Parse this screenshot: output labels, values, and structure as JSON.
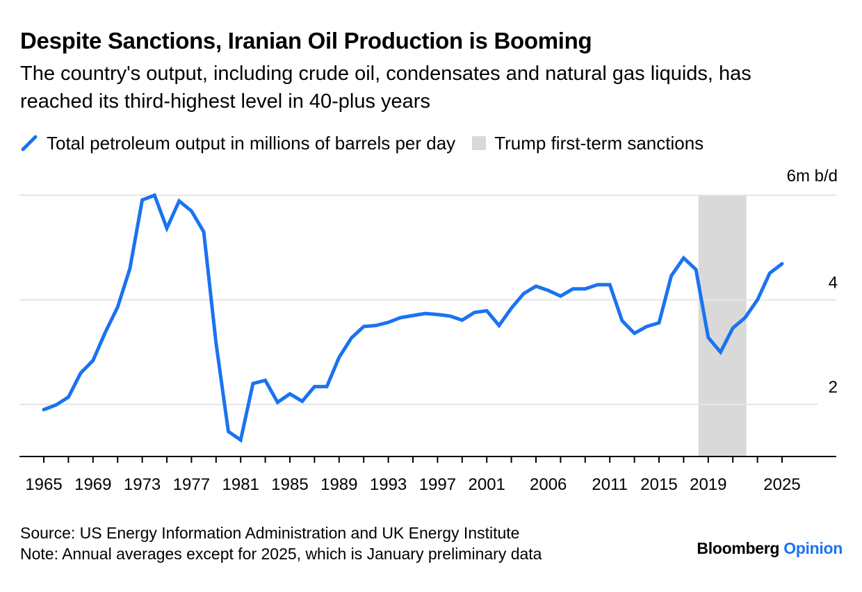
{
  "header": {
    "title": "Despite Sanctions, Iranian Oil Production is Booming",
    "subtitle": "The country's output, including crude oil, condensates and natural gas liquids, has reached its third-highest level in 40-plus years"
  },
  "legend": {
    "series_label": "Total petroleum output in millions of barrels per day",
    "band_label": "Trump first-term sanctions"
  },
  "footer": {
    "source": "Source: US Energy Information Administration and UK Energy Institute",
    "note": "Note: Annual averages except for 2025, which is January preliminary data"
  },
  "brand": {
    "name": "Bloomberg",
    "product": "Opinion"
  },
  "colors": {
    "line": "#1a73f0",
    "band": "#d9d9d9",
    "grid": "#e6e6e6",
    "axis": "#000000",
    "brand_accent": "#1a73f0"
  },
  "chart_data": {
    "type": "line",
    "title": "Despite Sanctions, Iranian Oil Production is Booming",
    "ylabel_unit": "6m b/d",
    "ylim": [
      0.7,
      6.0
    ],
    "yticks": [
      2,
      4,
      6
    ],
    "ytick_labels": [
      "2",
      "4",
      "6m b/d"
    ],
    "xlim": [
      1965,
      2025
    ],
    "xticks": [
      1965,
      1967,
      1969,
      1971,
      1973,
      1975,
      1977,
      1979,
      1981,
      1983,
      1985,
      1987,
      1989,
      1991,
      1993,
      1995,
      1997,
      1999,
      2001,
      2003,
      2005,
      2007,
      2009,
      2011,
      2013,
      2015,
      2017,
      2019,
      2021,
      2023,
      2025
    ],
    "xtick_labels": [
      "1965",
      "1969",
      "1973",
      "1977",
      "1981",
      "1985",
      "1989",
      "1993",
      "1997",
      "2001",
      "2006",
      "2011",
      "2015",
      "2019",
      "2025"
    ],
    "xtick_label_positions": [
      1965,
      1969,
      1973,
      1977,
      1981,
      1985,
      1989,
      1993,
      1997,
      2001,
      2006,
      2011,
      2015,
      2019,
      2025
    ],
    "grid": true,
    "band": {
      "label": "Trump first-term sanctions",
      "from": 2018.2,
      "to": 2022.1
    },
    "series": [
      {
        "name": "Total petroleum output in millions of barrels per day",
        "x": [
          1965,
          1966,
          1967,
          1968,
          1969,
          1970,
          1971,
          1972,
          1973,
          1974,
          1975,
          1976,
          1977,
          1978,
          1979,
          1980,
          1981,
          1982,
          1983,
          1984,
          1985,
          1986,
          1987,
          1988,
          1989,
          1990,
          1991,
          1992,
          1993,
          1994,
          1995,
          1996,
          1997,
          1998,
          1999,
          2000,
          2001,
          2002,
          2003,
          2004,
          2005,
          2006,
          2007,
          2008,
          2009,
          2010,
          2011,
          2012,
          2013,
          2014,
          2015,
          2016,
          2017,
          2018,
          2019,
          2020,
          2021,
          2022,
          2023,
          2024,
          2025
        ],
        "values": [
          1.9,
          1.99,
          2.14,
          2.6,
          2.84,
          3.38,
          3.86,
          4.6,
          5.91,
          6.0,
          5.37,
          5.89,
          5.7,
          5.3,
          3.17,
          1.48,
          1.32,
          2.4,
          2.46,
          2.04,
          2.2,
          2.06,
          2.34,
          2.34,
          2.9,
          3.27,
          3.49,
          3.51,
          3.57,
          3.66,
          3.7,
          3.74,
          3.72,
          3.69,
          3.61,
          3.76,
          3.79,
          3.51,
          3.84,
          4.12,
          4.26,
          4.18,
          4.07,
          4.21,
          4.21,
          4.29,
          4.29,
          3.6,
          3.36,
          3.49,
          3.56,
          4.46,
          4.8,
          4.58,
          3.28,
          3.0,
          3.46,
          3.66,
          4.0,
          4.51,
          4.69
        ]
      }
    ]
  }
}
